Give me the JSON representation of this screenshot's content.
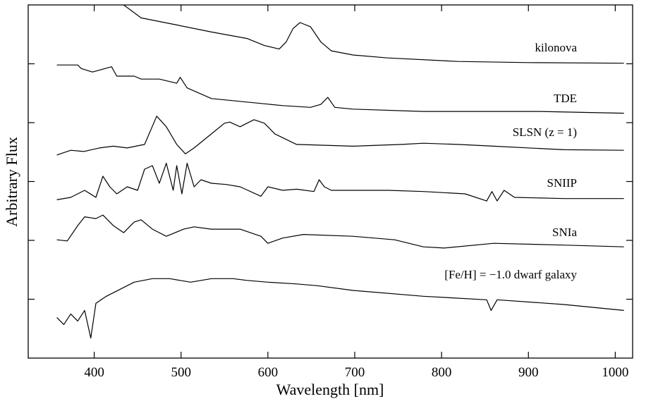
{
  "chart_data": {
    "type": "line",
    "xlabel": "Wavelength [nm]",
    "ylabel": "Arbitrary Flux",
    "xlim": [
      324,
      1020
    ],
    "xticks": [
      400,
      500,
      600,
      700,
      800,
      900,
      1000
    ],
    "ylim": [
      0,
      6
    ],
    "yticks": [
      1,
      2,
      3,
      4,
      5
    ],
    "series": [
      {
        "name": "kilonova",
        "color": "#000000",
        "x": [
          434,
          454,
          495,
          535,
          576,
          596,
          613,
          621,
          629,
          637,
          649,
          661,
          673,
          698,
          738,
          819,
          900,
          1010
        ],
        "values": [
          6.0,
          5.78,
          5.66,
          5.54,
          5.43,
          5.31,
          5.25,
          5.37,
          5.6,
          5.7,
          5.63,
          5.37,
          5.22,
          5.15,
          5.1,
          5.04,
          5.02,
          5.01
        ]
      },
      {
        "name": "TDE",
        "color": "#000000",
        "x": [
          357,
          381,
          385,
          398,
          420,
          426,
          446,
          454,
          475,
          495,
          499,
          507,
          535,
          576,
          617,
          649,
          661,
          669,
          677,
          698,
          779,
          913,
          1010
        ],
        "values": [
          4.98,
          4.98,
          4.92,
          4.86,
          4.95,
          4.79,
          4.79,
          4.74,
          4.74,
          4.67,
          4.77,
          4.59,
          4.41,
          4.35,
          4.29,
          4.26,
          4.31,
          4.43,
          4.26,
          4.23,
          4.19,
          4.19,
          4.16
        ]
      },
      {
        "name": "SLSN (z = 1)",
        "color": "#000000",
        "x": [
          357,
          373,
          388,
          406,
          422,
          438,
          458,
          472,
          483,
          495,
          505,
          515,
          535,
          550,
          556,
          568,
          584,
          596,
          608,
          633,
          698,
          754,
          779,
          819,
          860,
          941,
          1010
        ],
        "values": [
          3.45,
          3.53,
          3.51,
          3.57,
          3.6,
          3.57,
          3.63,
          4.11,
          3.93,
          3.63,
          3.47,
          3.57,
          3.81,
          3.99,
          4.01,
          3.93,
          4.05,
          3.99,
          3.81,
          3.63,
          3.6,
          3.63,
          3.65,
          3.63,
          3.6,
          3.54,
          3.53
        ]
      },
      {
        "name": "SNIIP",
        "color": "#000000",
        "x": [
          357,
          373,
          389,
          402,
          410,
          418,
          426,
          438,
          450,
          458,
          467,
          475,
          483,
          491,
          495,
          501,
          507,
          515,
          523,
          535,
          552,
          568,
          592,
          600,
          617,
          633,
          653,
          659,
          665,
          673,
          738,
          779,
          827,
          852,
          858,
          864,
          872,
          884,
          941,
          1010
        ],
        "values": [
          2.69,
          2.73,
          2.85,
          2.73,
          3.09,
          2.91,
          2.79,
          2.91,
          2.85,
          3.21,
          3.27,
          2.97,
          3.31,
          2.85,
          3.27,
          2.79,
          3.31,
          2.91,
          3.03,
          2.97,
          2.95,
          2.91,
          2.75,
          2.91,
          2.85,
          2.87,
          2.83,
          3.03,
          2.91,
          2.85,
          2.85,
          2.83,
          2.79,
          2.67,
          2.83,
          2.67,
          2.85,
          2.73,
          2.71,
          2.71
        ]
      },
      {
        "name": "SNIa",
        "color": "#000000",
        "x": [
          357,
          369,
          381,
          389,
          402,
          410,
          422,
          434,
          446,
          454,
          467,
          483,
          503,
          515,
          535,
          568,
          592,
          600,
          617,
          641,
          698,
          746,
          779,
          803,
          860,
          941,
          1010
        ],
        "values": [
          2.01,
          1.99,
          2.25,
          2.4,
          2.37,
          2.43,
          2.25,
          2.13,
          2.31,
          2.35,
          2.19,
          2.07,
          2.19,
          2.23,
          2.19,
          2.19,
          2.07,
          1.95,
          2.04,
          2.1,
          2.07,
          2.01,
          1.89,
          1.87,
          1.95,
          1.92,
          1.89
        ]
      },
      {
        "name": "[Fe/H] = −1.0 dwarf galaxy",
        "color": "#000000",
        "x": [
          357,
          365,
          373,
          381,
          389,
          396,
          402,
          414,
          430,
          446,
          467,
          487,
          511,
          535,
          560,
          576,
          600,
          633,
          657,
          698,
          779,
          852,
          857,
          864,
          941,
          1010
        ],
        "values": [
          0.69,
          0.57,
          0.75,
          0.63,
          0.81,
          0.34,
          0.93,
          1.05,
          1.17,
          1.29,
          1.35,
          1.35,
          1.29,
          1.35,
          1.35,
          1.32,
          1.29,
          1.26,
          1.23,
          1.15,
          1.05,
          0.99,
          0.81,
          0.99,
          0.91,
          0.81
        ]
      }
    ]
  }
}
